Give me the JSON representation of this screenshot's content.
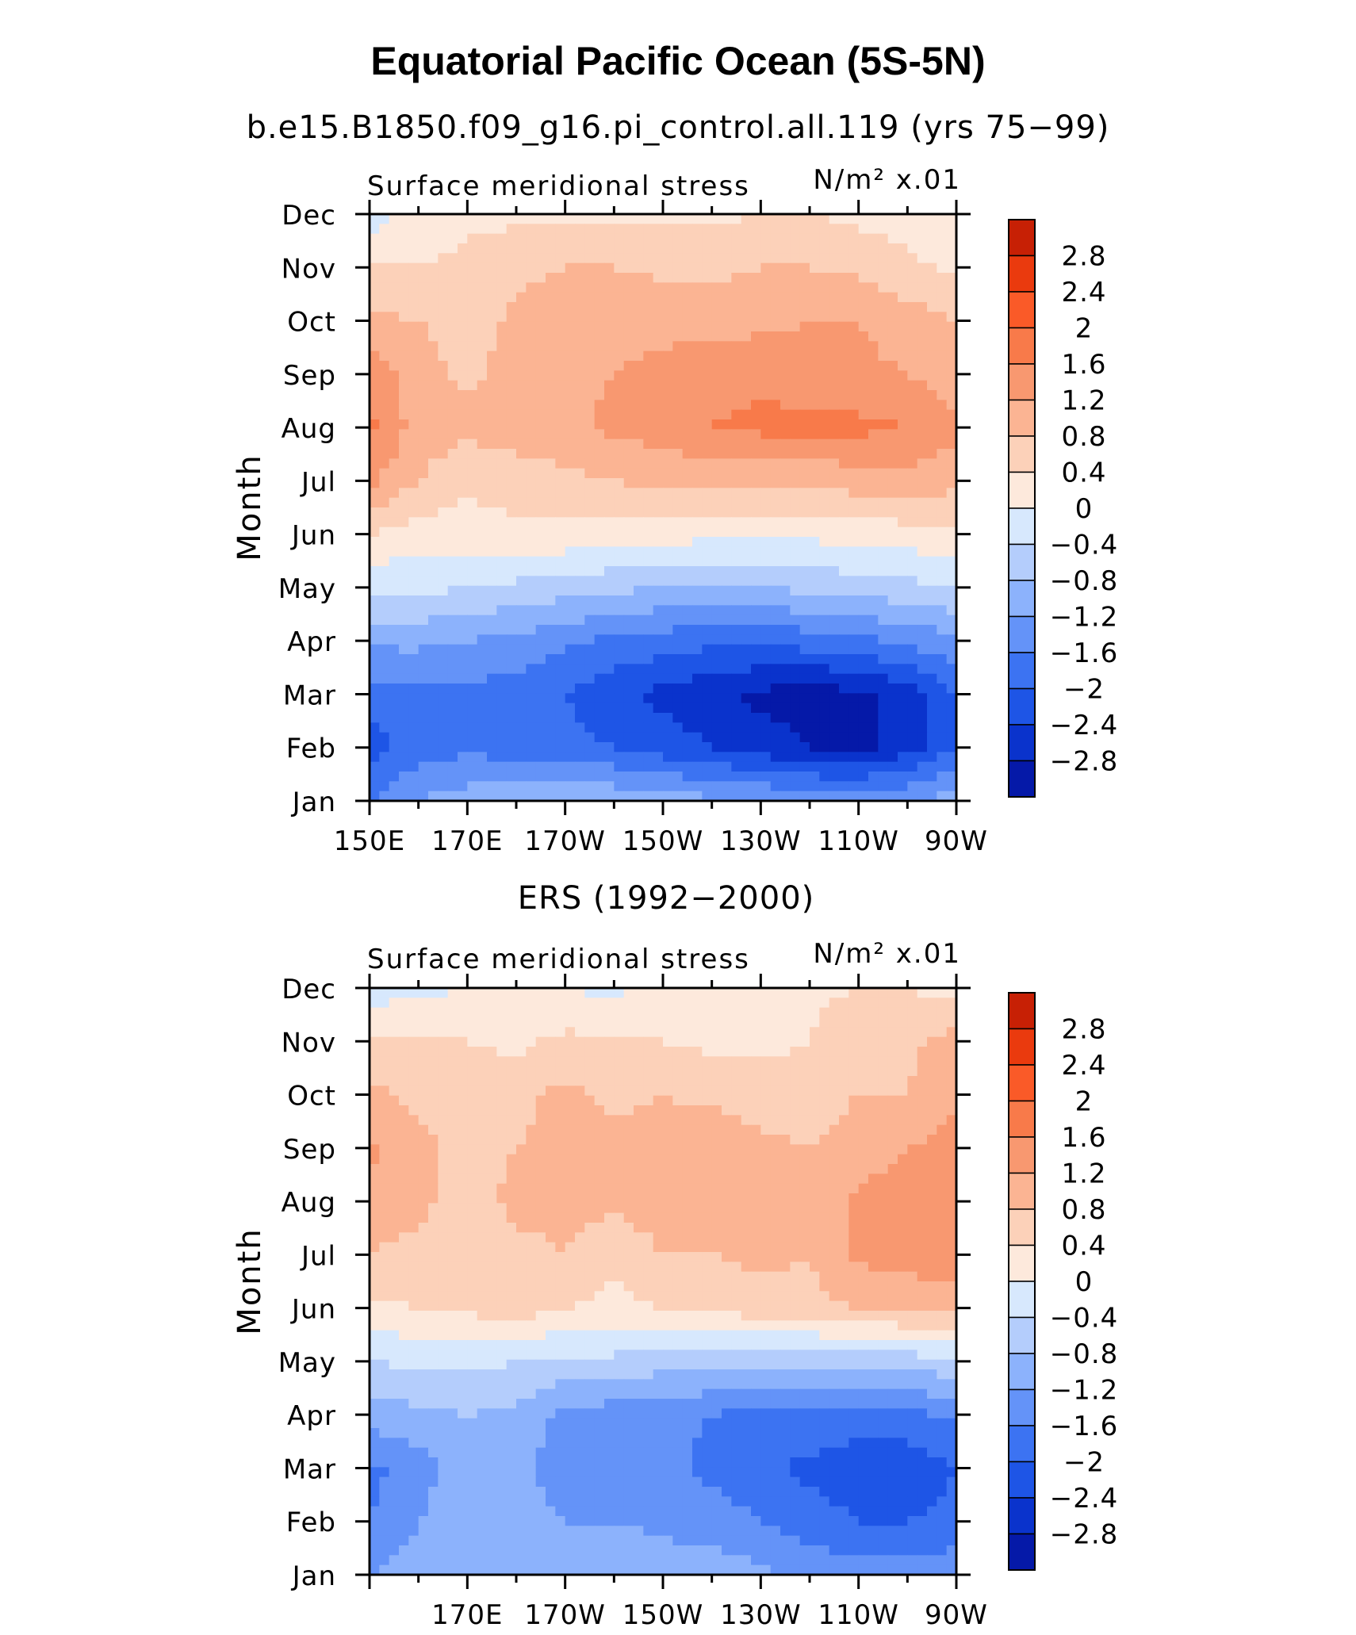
{
  "title": "Equatorial Pacific Ocean (5S-5N)",
  "colors": [
    "#000080",
    "#0519a8",
    "#0a33cc",
    "#1e55e6",
    "#3c73f2",
    "#6493f8",
    "#8cb2fc",
    "#b4cdfc",
    "#d7e8fd",
    "#fde9dc",
    "#fcd1b9",
    "#fbb493",
    "#f89870",
    "#f87a4a",
    "#fa5a28",
    "#ea3a0e",
    "#c72005",
    "#9b0000"
  ],
  "levels": [
    "2.8",
    "2.4",
    "2",
    "1.6",
    "1.2",
    "0.8",
    "0.4",
    "0",
    "−0.4",
    "−0.8",
    "−1.2",
    "−1.6",
    "−2",
    "−2.4",
    "−2.8"
  ],
  "panels": [
    {
      "title": "b.e15.B1850.f09_g16.pi_control.all.119 (yrs 75−99)",
      "left_label": "Surface meridional stress",
      "units": "N/m² x.01",
      "ylabel": "Month",
      "months": [
        "Jan",
        "Feb",
        "Mar",
        "Apr",
        "May",
        "Jun",
        "Jul",
        "Aug",
        "Sep",
        "Oct",
        "Nov",
        "Dec"
      ],
      "xticks": [
        "150E",
        "170E",
        "170W",
        "150W",
        "130W",
        "110W",
        "90W"
      ]
    },
    {
      "title": "ERS (1992−2000)",
      "left_label": "Surface meridional stress",
      "units": "N/m² x.01",
      "ylabel": "Month",
      "months": [
        "Jan",
        "Feb",
        "Mar",
        "Apr",
        "May",
        "Jun",
        "Jul",
        "Aug",
        "Sep",
        "Oct",
        "Nov",
        "Dec"
      ],
      "xticks": [
        "170E",
        "170W",
        "150W",
        "130W",
        "110W",
        "90W"
      ]
    }
  ],
  "chart_data": [
    {
      "type": "heatmap",
      "title": "b.e15.B1850.f09_g16.pi_control.all.119 (yrs 75−99)",
      "variable": "Surface meridional stress",
      "units": "N/m² x.01",
      "xlabel": "",
      "ylabel": "Month",
      "x": [
        "150E",
        "160E",
        "170E",
        "180",
        "170W",
        "160W",
        "150W",
        "140W",
        "130W",
        "120W",
        "110W",
        "100W",
        "90W"
      ],
      "y": [
        "Jan",
        "Feb",
        "Mar",
        "Apr",
        "May",
        "Jun",
        "Jul",
        "Aug",
        "Sep",
        "Oct",
        "Nov",
        "Dec"
      ],
      "z": [
        [
          -1.6,
          -1.2,
          -1.0,
          -0.9,
          -0.9,
          -0.9,
          -1.0,
          -1.1,
          -1.2,
          -1.3,
          -1.3,
          -1.2,
          -1.0
        ],
        [
          -2.2,
          -1.8,
          -1.7,
          -1.8,
          -1.9,
          -2.0,
          -2.2,
          -2.4,
          -2.6,
          -2.8,
          -2.9,
          -2.6,
          -2.0
        ],
        [
          -1.8,
          -1.7,
          -1.7,
          -1.8,
          -2.0,
          -2.3,
          -2.5,
          -2.7,
          -2.9,
          -3.0,
          -2.9,
          -2.6,
          -2.0
        ],
        [
          -1.1,
          -1.1,
          -1.2,
          -1.3,
          -1.5,
          -1.7,
          -1.8,
          -1.9,
          -1.9,
          -1.8,
          -1.7,
          -1.5,
          -1.3
        ],
        [
          -0.3,
          -0.3,
          -0.4,
          -0.5,
          -0.6,
          -0.7,
          -0.8,
          -0.8,
          -0.8,
          -0.7,
          -0.6,
          -0.5,
          -0.4
        ],
        [
          0.4,
          0.2,
          0.2,
          0.3,
          0.3,
          0.2,
          0.2,
          0.1,
          0.1,
          0.1,
          0.2,
          0.2,
          0.3
        ],
        [
          1.3,
          0.8,
          0.5,
          0.6,
          0.7,
          0.8,
          0.9,
          0.9,
          0.9,
          0.9,
          1.0,
          1.1,
          0.9
        ],
        [
          1.7,
          1.0,
          0.9,
          1.0,
          1.1,
          1.3,
          1.4,
          1.6,
          1.7,
          1.7,
          1.7,
          1.6,
          1.3
        ],
        [
          1.5,
          1.0,
          0.7,
          1.0,
          1.1,
          1.2,
          1.3,
          1.5,
          1.5,
          1.4,
          1.3,
          1.2,
          1.0
        ],
        [
          0.9,
          0.8,
          0.6,
          0.9,
          1.0,
          1.1,
          1.1,
          1.0,
          1.1,
          1.2,
          1.2,
          1.0,
          0.8
        ],
        [
          0.4,
          0.4,
          0.5,
          0.7,
          0.8,
          0.8,
          0.7,
          0.7,
          0.8,
          0.8,
          0.7,
          0.5,
          0.3
        ],
        [
          -0.2,
          0.2,
          0.3,
          0.3,
          0.3,
          0.3,
          0.3,
          0.3,
          0.4,
          0.4,
          0.3,
          0.2,
          0.2
        ]
      ],
      "levels": [
        -2.8,
        -2.4,
        -2.0,
        -1.6,
        -1.2,
        -0.8,
        -0.4,
        0,
        0.4,
        0.8,
        1.2,
        1.6,
        2.0,
        2.4,
        2.8
      ]
    },
    {
      "type": "heatmap",
      "title": "ERS (1992−2000)",
      "variable": "Surface meridional stress",
      "units": "N/m² x.01",
      "xlabel": "",
      "ylabel": "Month",
      "x": [
        "150E",
        "160E",
        "170E",
        "180",
        "170W",
        "160W",
        "150W",
        "140W",
        "130W",
        "120W",
        "110W",
        "100W",
        "90W"
      ],
      "y": [
        "Jan",
        "Feb",
        "Mar",
        "Apr",
        "May",
        "Jun",
        "Jul",
        "Aug",
        "Sep",
        "Oct",
        "Nov",
        "Dec"
      ],
      "z": [
        [
          -1.2,
          -1.0,
          -0.8,
          -0.8,
          -0.9,
          -0.9,
          -1.0,
          -1.0,
          -1.1,
          -1.3,
          -1.4,
          -1.4,
          -1.3
        ],
        [
          -1.6,
          -1.2,
          -0.9,
          -1.0,
          -1.2,
          -1.2,
          -1.3,
          -1.4,
          -1.6,
          -1.8,
          -2.0,
          -2.0,
          -1.9
        ],
        [
          -1.7,
          -1.4,
          -0.9,
          -1.1,
          -1.4,
          -1.4,
          -1.5,
          -1.7,
          -1.9,
          -2.1,
          -2.3,
          -2.3,
          -2.0
        ],
        [
          -1.0,
          -0.9,
          -0.8,
          -0.9,
          -1.3,
          -1.4,
          -1.5,
          -1.6,
          -1.7,
          -1.7,
          -1.7,
          -1.7,
          -1.5
        ],
        [
          -0.4,
          -0.3,
          -0.3,
          -0.4,
          -0.5,
          -0.5,
          -0.6,
          -0.6,
          -0.6,
          -0.7,
          -0.7,
          -0.6,
          -0.5
        ],
        [
          0.3,
          0.4,
          0.5,
          0.6,
          0.4,
          0.3,
          0.4,
          0.5,
          0.6,
          0.7,
          0.8,
          0.9,
          1.0
        ],
        [
          0.8,
          0.7,
          0.6,
          0.7,
          0.8,
          0.5,
          0.8,
          0.8,
          0.9,
          0.8,
          1.3,
          1.4,
          1.4
        ],
        [
          1.0,
          0.9,
          0.6,
          0.9,
          0.9,
          0.9,
          1.0,
          1.0,
          1.0,
          0.8,
          1.3,
          1.4,
          1.5
        ],
        [
          1.3,
          0.9,
          0.7,
          0.8,
          0.9,
          0.9,
          1.0,
          1.1,
          0.9,
          0.8,
          1.0,
          1.2,
          1.3
        ],
        [
          0.9,
          0.7,
          0.6,
          0.7,
          0.9,
          0.7,
          0.8,
          0.7,
          0.6,
          0.6,
          0.8,
          0.8,
          1.2
        ],
        [
          0.4,
          0.5,
          0.4,
          0.3,
          0.5,
          0.4,
          0.4,
          0.3,
          0.3,
          0.4,
          0.8,
          0.7,
          1.0
        ],
        [
          -0.2,
          -0.1,
          0.0,
          0.1,
          0.0,
          -0.1,
          0.2,
          0.1,
          0.2,
          0.3,
          0.4,
          0.4,
          0.2
        ]
      ],
      "levels": [
        -2.8,
        -2.4,
        -2.0,
        -1.6,
        -1.2,
        -0.8,
        -0.4,
        0,
        0.4,
        0.8,
        1.2,
        1.6,
        2.0,
        2.4,
        2.8
      ]
    }
  ]
}
